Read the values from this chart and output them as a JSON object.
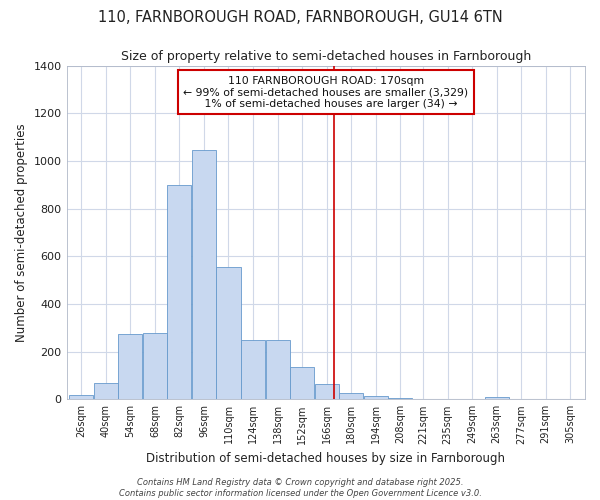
{
  "title1": "110, FARNBOROUGH ROAD, FARNBOROUGH, GU14 6TN",
  "title2": "Size of property relative to semi-detached houses in Farnborough",
  "xlabel": "Distribution of semi-detached houses by size in Farnborough",
  "ylabel": "Number of semi-detached properties",
  "bar_color": "#c8d8f0",
  "bar_edge_color": "#6699cc",
  "background_color": "#ffffff",
  "plot_bg_color": "#ffffff",
  "grid_color": "#d0d8e8",
  "vline_x": 170,
  "vline_color": "#cc0000",
  "legend_title": "110 FARNBOROUGH ROAD: 170sqm",
  "legend_line1": "← 99% of semi-detached houses are smaller (3,329)",
  "legend_line2": "1% of semi-detached houses are larger (34) →",
  "bins": [
    26,
    40,
    54,
    68,
    82,
    96,
    110,
    124,
    138,
    152,
    166,
    180,
    194,
    208,
    221,
    235,
    249,
    263,
    277,
    291,
    305
  ],
  "heights": [
    20,
    70,
    275,
    280,
    900,
    1045,
    555,
    250,
    250,
    135,
    65,
    25,
    15,
    5,
    0,
    0,
    0,
    8,
    0,
    0,
    0
  ],
  "ylim": [
    0,
    1400
  ],
  "yticks": [
    0,
    200,
    400,
    600,
    800,
    1000,
    1200,
    1400
  ],
  "footnote1": "Contains HM Land Registry data © Crown copyright and database right 2025.",
  "footnote2": "Contains public sector information licensed under the Open Government Licence v3.0."
}
